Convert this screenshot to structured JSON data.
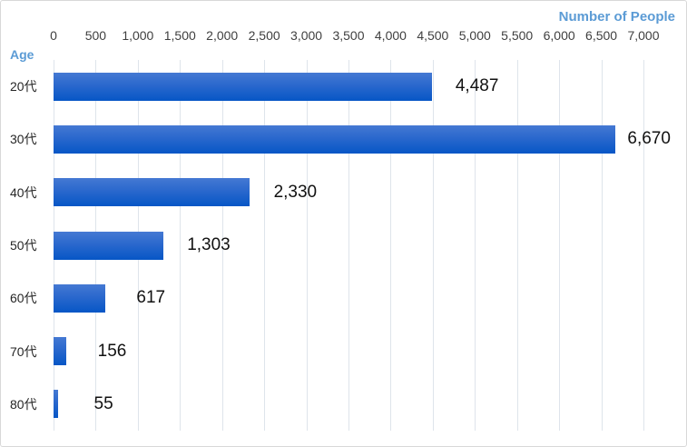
{
  "chart_data": {
    "type": "bar",
    "orientation": "horizontal",
    "title": "",
    "xlabel": "Number of People",
    "ylabel": "Age",
    "categories": [
      "20代",
      "30代",
      "40代",
      "50代",
      "60代",
      "70代",
      "80代"
    ],
    "values": [
      4487,
      6670,
      2330,
      1303,
      617,
      156,
      55
    ],
    "value_labels": [
      "4,487",
      "6,670",
      "2,330",
      "1,303",
      "617",
      "156",
      "55"
    ],
    "xlim": [
      0,
      7000
    ],
    "xticks": [
      0,
      500,
      1000,
      1500,
      2000,
      2500,
      3000,
      3500,
      4000,
      4500,
      5000,
      5500,
      6000,
      6500,
      7000
    ],
    "xtick_labels": [
      "0",
      "500",
      "1,000",
      "1,500",
      "2,000",
      "2,500",
      "3,000",
      "3,500",
      "4,000",
      "4,500",
      "5,000",
      "5,500",
      "6,000",
      "6,500",
      "7,000"
    ],
    "grid": "vertical",
    "legend": "none",
    "colors": {
      "bar_gradient_top": "#4579d3",
      "bar_gradient_mid": "#2a68cd",
      "bar_gradient_bottom": "#0656c6",
      "gridline": "#dee4eb",
      "tick_text": "#3f3f3f",
      "category_text": "#262626",
      "value_label_text": "#111111",
      "axis_title": "#5b9bd5",
      "chart_border": "#d8d8d8",
      "background": "#ffffff"
    }
  }
}
